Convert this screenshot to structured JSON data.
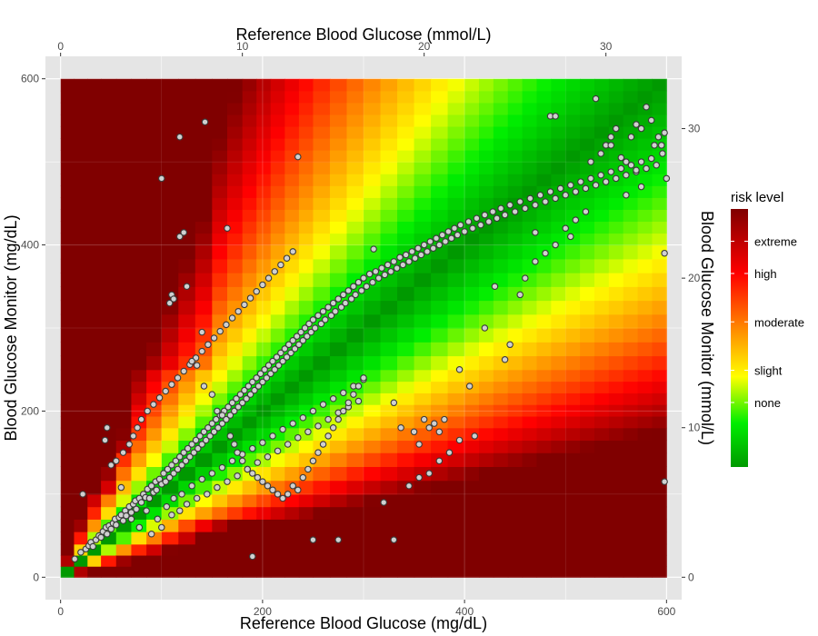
{
  "chart_data": {
    "type": "scatter",
    "background": "heatmap",
    "x_axis_bottom": {
      "label": "Reference Blood Glucose (mg/dL)",
      "range": [
        -15,
        615
      ],
      "ticks": [
        0,
        200,
        400,
        600
      ],
      "tick_labels": [
        "0",
        "200",
        "400",
        "600"
      ]
    },
    "x_axis_top": {
      "label": "Reference Blood Glucose (mmol/L)",
      "ticks": [
        0,
        10,
        20,
        30
      ],
      "tick_labels": [
        "0",
        "10",
        "20",
        "30"
      ],
      "mgdl_per_unit": 18.0
    },
    "y_axis_left": {
      "label": "Blood Glucose Monitor (mg/dL)",
      "range": [
        -27,
        627
      ],
      "ticks": [
        0,
        200,
        400,
        600
      ],
      "tick_labels": [
        "0",
        "200",
        "400",
        "600"
      ]
    },
    "y_axis_right": {
      "label": "Blood Glucose Monitor (mmol/L)",
      "ticks": [
        0,
        10,
        20,
        30
      ],
      "tick_labels": [
        "0",
        "10",
        "20",
        "30"
      ],
      "mgdl_per_unit": 18.0
    },
    "grid": true,
    "panel_color": "#e5e5e5",
    "grid_color": "#ffffff",
    "legend": {
      "title": "risk level",
      "position": "right",
      "labels": [
        "extreme",
        "high",
        "moderate",
        "slight",
        "none"
      ],
      "values": [
        3.5,
        3.0,
        2.25,
        1.5,
        1.0
      ],
      "range": [
        0,
        4
      ],
      "colors": [
        "#009900",
        "#00ee00",
        "#ffff00",
        "#ff8000",
        "#ff0000",
        "#800000"
      ],
      "color_stops": [
        0.0,
        0.17,
        0.35,
        0.55,
        0.75,
        1.0
      ]
    },
    "risk_breakpoints": [
      0,
      40,
      55,
      70,
      100,
      150,
      180,
      250,
      300,
      350,
      400,
      500,
      600
    ],
    "risk_surface_range": [
      0,
      600
    ],
    "points_style": {
      "fill": "#d0d0d0",
      "stroke": "#3a3a3a"
    },
    "points": [
      [
        14,
        22
      ],
      [
        20,
        30
      ],
      [
        22,
        100
      ],
      [
        25,
        34
      ],
      [
        28,
        38
      ],
      [
        30,
        42
      ],
      [
        32,
        37
      ],
      [
        35,
        45
      ],
      [
        38,
        50
      ],
      [
        40,
        48
      ],
      [
        42,
        55
      ],
      [
        45,
        60
      ],
      [
        46,
        52
      ],
      [
        48,
        62
      ],
      [
        50,
        58
      ],
      [
        52,
        65
      ],
      [
        54,
        70
      ],
      [
        55,
        63
      ],
      [
        58,
        72
      ],
      [
        60,
        75
      ],
      [
        62,
        68
      ],
      [
        64,
        80
      ],
      [
        65,
        74
      ],
      [
        68,
        85
      ],
      [
        70,
        78
      ],
      [
        72,
        88
      ],
      [
        74,
        92
      ],
      [
        75,
        82
      ],
      [
        78,
        95
      ],
      [
        80,
        90
      ],
      [
        82,
        100
      ],
      [
        84,
        96
      ],
      [
        86,
        106
      ],
      [
        88,
        95
      ],
      [
        90,
        110
      ],
      [
        92,
        102
      ],
      [
        94,
        115
      ],
      [
        95,
        105
      ],
      [
        98,
        118
      ],
      [
        100,
        112
      ],
      [
        102,
        125
      ],
      [
        104,
        115
      ],
      [
        106,
        130
      ],
      [
        108,
        120
      ],
      [
        110,
        135
      ],
      [
        112,
        125
      ],
      [
        114,
        140
      ],
      [
        116,
        130
      ],
      [
        118,
        145
      ],
      [
        120,
        135
      ],
      [
        122,
        150
      ],
      [
        124,
        140
      ],
      [
        126,
        155
      ],
      [
        128,
        145
      ],
      [
        130,
        160
      ],
      [
        132,
        150
      ],
      [
        134,
        165
      ],
      [
        136,
        155
      ],
      [
        138,
        170
      ],
      [
        140,
        160
      ],
      [
        142,
        175
      ],
      [
        144,
        165
      ],
      [
        146,
        180
      ],
      [
        148,
        170
      ],
      [
        150,
        185
      ],
      [
        152,
        175
      ],
      [
        154,
        190
      ],
      [
        156,
        180
      ],
      [
        158,
        195
      ],
      [
        160,
        185
      ],
      [
        162,
        200
      ],
      [
        164,
        190
      ],
      [
        166,
        205
      ],
      [
        168,
        195
      ],
      [
        170,
        210
      ],
      [
        172,
        200
      ],
      [
        174,
        215
      ],
      [
        176,
        205
      ],
      [
        178,
        220
      ],
      [
        180,
        210
      ],
      [
        182,
        225
      ],
      [
        184,
        215
      ],
      [
        186,
        230
      ],
      [
        188,
        220
      ],
      [
        190,
        235
      ],
      [
        192,
        225
      ],
      [
        194,
        240
      ],
      [
        196,
        230
      ],
      [
        198,
        245
      ],
      [
        200,
        235
      ],
      [
        202,
        250
      ],
      [
        204,
        240
      ],
      [
        206,
        255
      ],
      [
        208,
        245
      ],
      [
        210,
        260
      ],
      [
        212,
        250
      ],
      [
        214,
        265
      ],
      [
        216,
        255
      ],
      [
        218,
        270
      ],
      [
        220,
        260
      ],
      [
        222,
        275
      ],
      [
        224,
        265
      ],
      [
        226,
        280
      ],
      [
        228,
        270
      ],
      [
        230,
        285
      ],
      [
        232,
        275
      ],
      [
        234,
        290
      ],
      [
        236,
        280
      ],
      [
        238,
        295
      ],
      [
        240,
        285
      ],
      [
        242,
        300
      ],
      [
        244,
        290
      ],
      [
        246,
        305
      ],
      [
        248,
        295
      ],
      [
        250,
        310
      ],
      [
        252,
        300
      ],
      [
        255,
        315
      ],
      [
        258,
        305
      ],
      [
        260,
        320
      ],
      [
        262,
        310
      ],
      [
        265,
        325
      ],
      [
        268,
        315
      ],
      [
        270,
        330
      ],
      [
        272,
        320
      ],
      [
        275,
        335
      ],
      [
        278,
        325
      ],
      [
        280,
        340
      ],
      [
        282,
        330
      ],
      [
        285,
        345
      ],
      [
        288,
        335
      ],
      [
        290,
        350
      ],
      [
        292,
        340
      ],
      [
        295,
        355
      ],
      [
        298,
        345
      ],
      [
        300,
        360
      ],
      [
        303,
        350
      ],
      [
        306,
        365
      ],
      [
        309,
        355
      ],
      [
        312,
        368
      ],
      [
        315,
        360
      ],
      [
        318,
        372
      ],
      [
        321,
        364
      ],
      [
        324,
        376
      ],
      [
        327,
        368
      ],
      [
        330,
        380
      ],
      [
        333,
        372
      ],
      [
        336,
        385
      ],
      [
        339,
        376
      ],
      [
        342,
        388
      ],
      [
        345,
        380
      ],
      [
        348,
        392
      ],
      [
        351,
        384
      ],
      [
        354,
        396
      ],
      [
        357,
        388
      ],
      [
        360,
        400
      ],
      [
        363,
        392
      ],
      [
        366,
        404
      ],
      [
        369,
        396
      ],
      [
        372,
        408
      ],
      [
        375,
        400
      ],
      [
        378,
        412
      ],
      [
        381,
        404
      ],
      [
        384,
        416
      ],
      [
        387,
        408
      ],
      [
        390,
        420
      ],
      [
        393,
        412
      ],
      [
        396,
        424
      ],
      [
        400,
        416
      ],
      [
        404,
        428
      ],
      [
        408,
        420
      ],
      [
        412,
        432
      ],
      [
        416,
        424
      ],
      [
        420,
        436
      ],
      [
        424,
        428
      ],
      [
        428,
        440
      ],
      [
        432,
        432
      ],
      [
        436,
        444
      ],
      [
        440,
        436
      ],
      [
        445,
        448
      ],
      [
        450,
        440
      ],
      [
        455,
        452
      ],
      [
        460,
        444
      ],
      [
        465,
        456
      ],
      [
        470,
        448
      ],
      [
        475,
        460
      ],
      [
        480,
        452
      ],
      [
        485,
        464
      ],
      [
        490,
        456
      ],
      [
        495,
        468
      ],
      [
        500,
        460
      ],
      [
        505,
        472
      ],
      [
        510,
        464
      ],
      [
        515,
        476
      ],
      [
        520,
        468
      ],
      [
        525,
        480
      ],
      [
        530,
        472
      ],
      [
        535,
        484
      ],
      [
        540,
        476
      ],
      [
        545,
        488
      ],
      [
        550,
        480
      ],
      [
        555,
        492
      ],
      [
        560,
        484
      ],
      [
        565,
        496
      ],
      [
        570,
        488
      ],
      [
        575,
        500
      ],
      [
        580,
        492
      ],
      [
        585,
        504
      ],
      [
        590,
        496
      ],
      [
        595,
        520
      ],
      [
        598,
        535
      ],
      [
        44,
        165
      ],
      [
        50,
        135
      ],
      [
        60,
        108
      ],
      [
        70,
        70
      ],
      [
        78,
        60
      ],
      [
        85,
        80
      ],
      [
        90,
        52
      ],
      [
        96,
        70
      ],
      [
        100,
        60
      ],
      [
        105,
        85
      ],
      [
        110,
        75
      ],
      [
        112,
        95
      ],
      [
        118,
        80
      ],
      [
        120,
        100
      ],
      [
        125,
        88
      ],
      [
        130,
        110
      ],
      [
        135,
        95
      ],
      [
        140,
        118
      ],
      [
        145,
        100
      ],
      [
        150,
        125
      ],
      [
        155,
        108
      ],
      [
        160,
        132
      ],
      [
        165,
        115
      ],
      [
        170,
        140
      ],
      [
        175,
        122
      ],
      [
        180,
        148
      ],
      [
        185,
        130
      ],
      [
        190,
        155
      ],
      [
        195,
        138
      ],
      [
        200,
        162
      ],
      [
        205,
        145
      ],
      [
        210,
        170
      ],
      [
        215,
        152
      ],
      [
        220,
        178
      ],
      [
        225,
        160
      ],
      [
        230,
        185
      ],
      [
        235,
        168
      ],
      [
        240,
        192
      ],
      [
        245,
        175
      ],
      [
        250,
        200
      ],
      [
        255,
        182
      ],
      [
        260,
        208
      ],
      [
        265,
        190
      ],
      [
        270,
        215
      ],
      [
        275,
        198
      ],
      [
        280,
        222
      ],
      [
        285,
        205
      ],
      [
        290,
        230
      ],
      [
        295,
        212
      ],
      [
        300,
        238
      ],
      [
        46,
        180
      ],
      [
        55,
        140
      ],
      [
        62,
        150
      ],
      [
        68,
        160
      ],
      [
        72,
        170
      ],
      [
        76,
        180
      ],
      [
        80,
        190
      ],
      [
        86,
        200
      ],
      [
        92,
        208
      ],
      [
        98,
        216
      ],
      [
        104,
        224
      ],
      [
        110,
        232
      ],
      [
        116,
        240
      ],
      [
        122,
        248
      ],
      [
        128,
        256
      ],
      [
        134,
        264
      ],
      [
        140,
        272
      ],
      [
        146,
        280
      ],
      [
        152,
        288
      ],
      [
        158,
        296
      ],
      [
        164,
        304
      ],
      [
        170,
        312
      ],
      [
        176,
        320
      ],
      [
        182,
        328
      ],
      [
        188,
        336
      ],
      [
        194,
        344
      ],
      [
        200,
        352
      ],
      [
        206,
        360
      ],
      [
        212,
        368
      ],
      [
        218,
        376
      ],
      [
        224,
        384
      ],
      [
        230,
        392
      ],
      [
        108,
        330
      ],
      [
        110,
        340
      ],
      [
        112,
        335
      ],
      [
        118,
        410
      ],
      [
        122,
        415
      ],
      [
        125,
        350
      ],
      [
        130,
        260
      ],
      [
        135,
        255
      ],
      [
        140,
        295
      ],
      [
        142,
        230
      ],
      [
        150,
        220
      ],
      [
        155,
        200
      ],
      [
        160,
        195
      ],
      [
        165,
        420
      ],
      [
        168,
        170
      ],
      [
        172,
        160
      ],
      [
        175,
        150
      ],
      [
        180,
        140
      ],
      [
        185,
        130
      ],
      [
        190,
        125
      ],
      [
        195,
        120
      ],
      [
        200,
        115
      ],
      [
        205,
        110
      ],
      [
        210,
        105
      ],
      [
        215,
        100
      ],
      [
        220,
        95
      ],
      [
        225,
        100
      ],
      [
        230,
        110
      ],
      [
        235,
        105
      ],
      [
        240,
        120
      ],
      [
        245,
        130
      ],
      [
        250,
        140
      ],
      [
        255,
        150
      ],
      [
        260,
        160
      ],
      [
        265,
        170
      ],
      [
        270,
        180
      ],
      [
        275,
        190
      ],
      [
        280,
        200
      ],
      [
        285,
        210
      ],
      [
        290,
        220
      ],
      [
        295,
        230
      ],
      [
        300,
        240
      ],
      [
        100,
        480
      ],
      [
        118,
        530
      ],
      [
        143,
        548
      ],
      [
        235,
        506
      ],
      [
        310,
        395
      ],
      [
        330,
        210
      ],
      [
        337,
        180
      ],
      [
        350,
        175
      ],
      [
        355,
        160
      ],
      [
        360,
        190
      ],
      [
        365,
        180
      ],
      [
        370,
        185
      ],
      [
        375,
        175
      ],
      [
        380,
        190
      ],
      [
        385,
        150
      ],
      [
        395,
        250
      ],
      [
        405,
        230
      ],
      [
        410,
        170
      ],
      [
        420,
        300
      ],
      [
        430,
        350
      ],
      [
        440,
        262
      ],
      [
        445,
        280
      ],
      [
        455,
        340
      ],
      [
        460,
        360
      ],
      [
        470,
        380
      ],
      [
        480,
        390
      ],
      [
        490,
        400
      ],
      [
        500,
        420
      ],
      [
        505,
        410
      ],
      [
        510,
        430
      ],
      [
        520,
        440
      ],
      [
        525,
        500
      ],
      [
        535,
        510
      ],
      [
        540,
        520
      ],
      [
        545,
        530
      ],
      [
        550,
        540
      ],
      [
        555,
        505
      ],
      [
        560,
        500
      ],
      [
        565,
        530
      ],
      [
        570,
        545
      ],
      [
        575,
        540
      ],
      [
        580,
        566
      ],
      [
        585,
        550
      ],
      [
        588,
        520
      ],
      [
        592,
        530
      ],
      [
        596,
        510
      ],
      [
        598,
        390
      ],
      [
        598,
        115
      ],
      [
        600,
        480
      ],
      [
        190,
        25
      ],
      [
        250,
        45
      ],
      [
        275,
        45
      ],
      [
        320,
        90
      ],
      [
        330,
        45
      ],
      [
        345,
        110
      ],
      [
        355,
        120
      ],
      [
        365,
        125
      ],
      [
        375,
        140
      ],
      [
        385,
        150
      ],
      [
        395,
        165
      ],
      [
        470,
        415
      ],
      [
        485,
        555
      ],
      [
        490,
        555
      ],
      [
        530,
        576
      ],
      [
        545,
        520
      ],
      [
        560,
        460
      ],
      [
        570,
        490
      ],
      [
        575,
        470
      ]
    ]
  }
}
